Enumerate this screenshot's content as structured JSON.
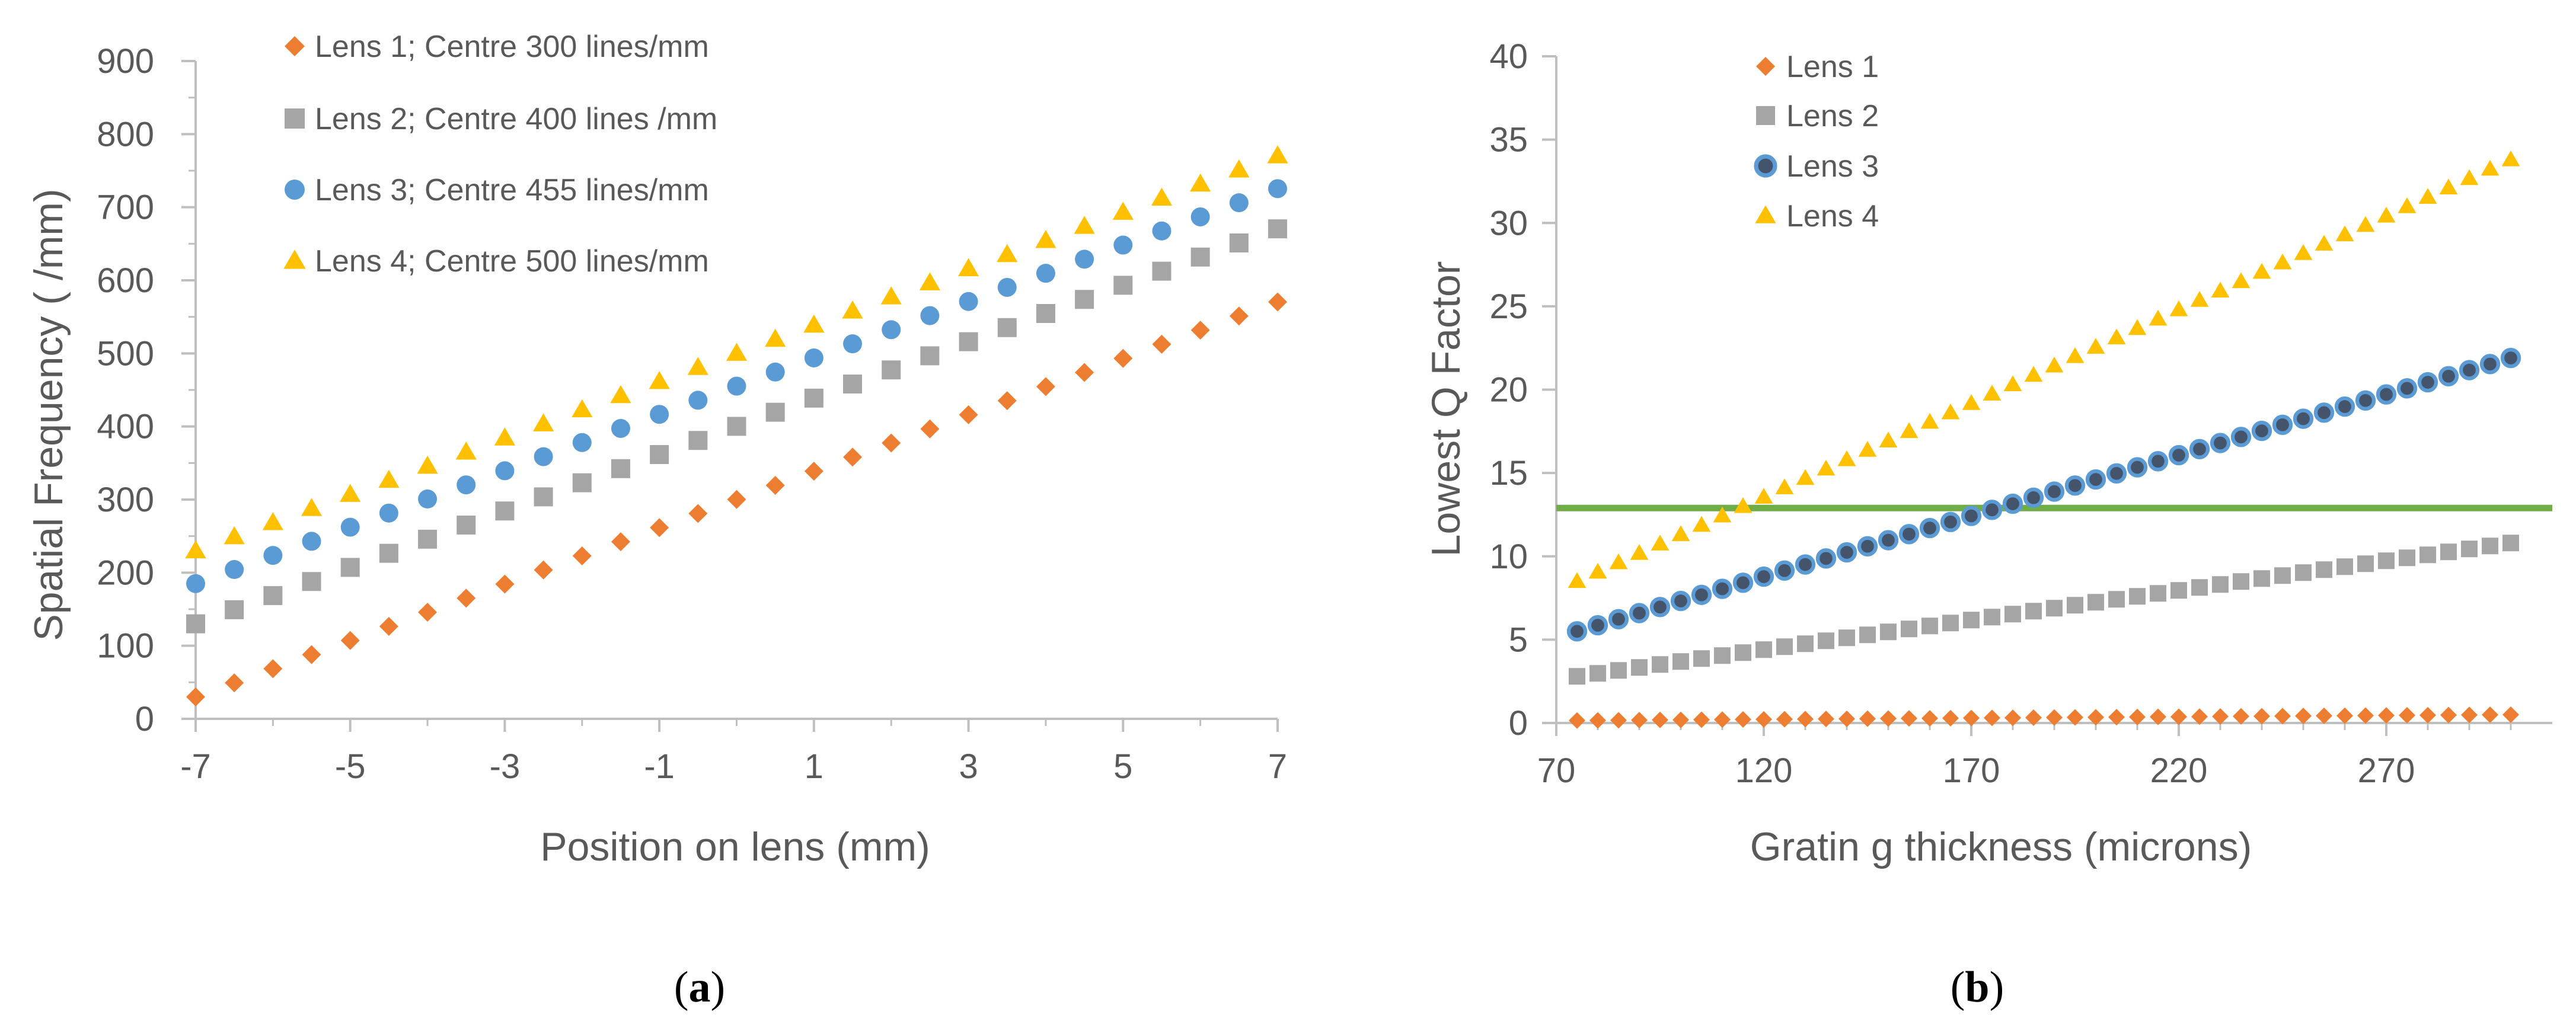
{
  "chart_data": [
    {
      "id": "a",
      "type": "scatter",
      "caption_letter": "a",
      "title": "",
      "xlabel": "Position on lens (mm)",
      "ylabel": "Spatial Frequency ( /mm)",
      "xlim": [
        -7,
        7
      ],
      "ylim": [
        0,
        900
      ],
      "xticks": [
        "-7",
        "-5",
        "-3",
        "-1",
        "1",
        "3",
        "5",
        "7"
      ],
      "yticks": [
        "0",
        "100",
        "200",
        "300",
        "400",
        "500",
        "600",
        "700",
        "800",
        "900"
      ],
      "x": [
        -7,
        -6.5,
        -6,
        -5.5,
        -5,
        -4.5,
        -4,
        -3.5,
        -3,
        -2.5,
        -2,
        -1.5,
        -1,
        -0.5,
        0,
        0.5,
        1,
        1.5,
        2,
        2.5,
        3,
        3.5,
        4,
        4.5,
        5,
        5.5,
        6,
        6.5,
        7
      ],
      "legend_position": "top-left",
      "series": [
        {
          "name": "Lens 1; Centre 300 lines/mm",
          "marker": "diamond",
          "color": "#ED7D31",
          "start": 30,
          "step": 19.3
        },
        {
          "name": "Lens 2; Centre 400 lines /mm",
          "marker": "square",
          "color": "#A5A5A5",
          "start": 130,
          "step": 19.3
        },
        {
          "name": "Lens 3; Centre 455 lines/mm",
          "marker": "circle",
          "color": "#5B9BD5",
          "start": 185,
          "step": 19.3
        },
        {
          "name": "Lens 4; Centre 500 lines/mm",
          "marker": "triangle",
          "color": "#FFC000",
          "start": 230,
          "step": 19.3
        }
      ]
    },
    {
      "id": "b",
      "type": "scatter",
      "caption_letter": "b",
      "title": "",
      "xlabel": "Gratin g thickness (microns)",
      "ylabel": "Lowest Q Factor",
      "xlim": [
        70,
        310
      ],
      "ylim": [
        0,
        40
      ],
      "xticks": [
        "70",
        "120",
        "170",
        "220",
        "270"
      ],
      "yticks": [
        "0",
        "5",
        "10",
        "15",
        "20",
        "25",
        "30",
        "35",
        "40"
      ],
      "x_start": 75,
      "x_step": 5,
      "x_count": 46,
      "legend_position": "top-left",
      "series": [
        {
          "name": "Lens 1",
          "marker": "diamond",
          "color": "#ED7D31",
          "start": 0.15,
          "end": 0.5
        },
        {
          "name": "Lens 2",
          "marker": "square",
          "color": "#A5A5A5",
          "start": 2.8,
          "end": 10.8
        },
        {
          "name": "Lens 3",
          "marker": "ring",
          "color": "#5B9BD5",
          "start": 5.5,
          "end": 21.9
        },
        {
          "name": "Lens 4",
          "marker": "triangle",
          "color": "#FFC000",
          "start": 8.5,
          "end": 33.8
        }
      ],
      "reference_line": {
        "y": 12.9,
        "color": "#70AD47"
      }
    }
  ],
  "captions": {
    "a": {
      "open": "(",
      "letter": "a",
      "close": ")"
    },
    "b": {
      "open": "(",
      "letter": "b",
      "close": ")"
    }
  }
}
